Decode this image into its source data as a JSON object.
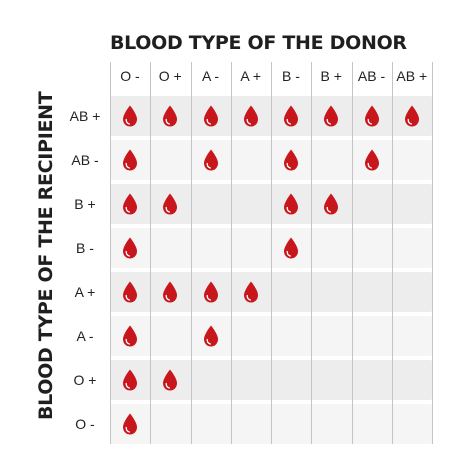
{
  "title": "BLOOD TYPE OF THE DONOR",
  "ylabel": "BLOOD TYPE OF THE RECIPIENT",
  "colors": {
    "drop": "#c8161d",
    "drop_highlight": "#ffffff",
    "row_dark": "#ededed",
    "row_light": "#f5f5f5",
    "grid": "#c4c4c4"
  },
  "icon": "blood-drop-icon",
  "donors": [
    "O -",
    "O +",
    "A -",
    "A +",
    "B -",
    "B +",
    "AB -",
    "AB +"
  ],
  "recipients": [
    {
      "label": "AB +",
      "compatible": [
        1,
        1,
        1,
        1,
        1,
        1,
        1,
        1
      ]
    },
    {
      "label": "AB -",
      "compatible": [
        1,
        0,
        1,
        0,
        1,
        0,
        1,
        0
      ]
    },
    {
      "label": "B +",
      "compatible": [
        1,
        1,
        0,
        0,
        1,
        1,
        0,
        0
      ]
    },
    {
      "label": "B -",
      "compatible": [
        1,
        0,
        0,
        0,
        1,
        0,
        0,
        0
      ]
    },
    {
      "label": "A +",
      "compatible": [
        1,
        1,
        1,
        1,
        0,
        0,
        0,
        0
      ]
    },
    {
      "label": "A -",
      "compatible": [
        1,
        0,
        1,
        0,
        0,
        0,
        0,
        0
      ]
    },
    {
      "label": "O +",
      "compatible": [
        1,
        1,
        0,
        0,
        0,
        0,
        0,
        0
      ]
    },
    {
      "label": "O -",
      "compatible": [
        1,
        0,
        0,
        0,
        0,
        0,
        0,
        0
      ]
    }
  ]
}
